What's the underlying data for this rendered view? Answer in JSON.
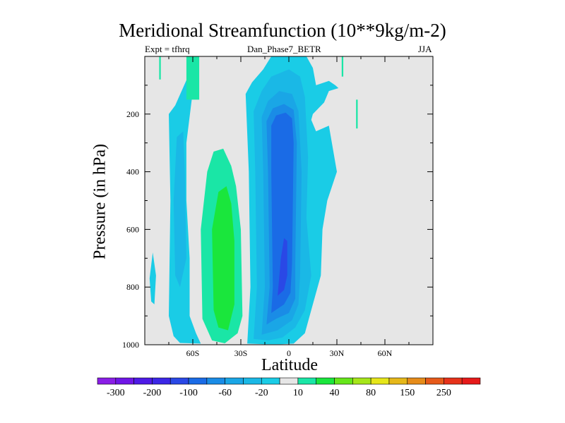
{
  "chart_data": {
    "type": "heatmap",
    "title": "Meridional Streamfunction (10**9kg/m-2)",
    "left_string": "Expt = tfhrq",
    "center_string": "Dan_Phase7_BETR",
    "right_string": "JJA",
    "xlabel": "Latitude",
    "ylabel": "Pressure (in hPa)",
    "xlim": [
      -90,
      90
    ],
    "ylim": [
      1000,
      0
    ],
    "x_ticks": [
      {
        "value": -60,
        "label": "60S"
      },
      {
        "value": -30,
        "label": "30S"
      },
      {
        "value": 0,
        "label": "0"
      },
      {
        "value": 30,
        "label": "30N"
      },
      {
        "value": 60,
        "label": "60N"
      }
    ],
    "y_ticks": [
      {
        "value": 200,
        "label": "200"
      },
      {
        "value": 400,
        "label": "400"
      },
      {
        "value": 600,
        "label": "600"
      },
      {
        "value": 800,
        "label": "800"
      },
      {
        "value": 1000,
        "label": "1000"
      }
    ],
    "colorbar": {
      "levels": [
        "-300",
        "-200",
        "-100",
        "-60",
        "-20",
        "10",
        "40",
        "80",
        "150",
        "250"
      ],
      "colors": [
        "#8a1ee6",
        "#6f16e6",
        "#4e1ae6",
        "#3b26e6",
        "#2a48e6",
        "#1a6be6",
        "#1a8ce6",
        "#1aa6e6",
        "#1ab8e6",
        "#1acce6",
        "#e6e6e6",
        "#1ae6a6",
        "#1ae63c",
        "#66e61a",
        "#a6e61a",
        "#e6e61a",
        "#e6b81a",
        "#e68c1a",
        "#e65a1a",
        "#e6321a",
        "#e61a1a"
      ]
    },
    "regions": [
      {
        "level": -1,
        "shape": "poly",
        "pts": [
          [
            -55,
            996
          ],
          [
            -58,
            960
          ],
          [
            -62,
            900
          ],
          [
            -62,
            700
          ],
          [
            -64,
            500
          ],
          [
            -64,
            300
          ],
          [
            -60,
            120
          ],
          [
            -63,
            70
          ],
          [
            -71,
            170
          ],
          [
            -75,
            200
          ],
          [
            -74,
            500
          ],
          [
            -75,
            900
          ],
          [
            -72,
            970
          ],
          [
            -68,
            994
          ]
        ]
      },
      {
        "level": -2,
        "shape": "poly",
        "pts": [
          [
            -68,
            800
          ],
          [
            -64,
            700
          ],
          [
            -65,
            400
          ],
          [
            -66,
            260
          ],
          [
            -70,
            280
          ],
          [
            -72,
            500
          ],
          [
            -71,
            760
          ]
        ]
      },
      {
        "level": -1,
        "shape": "poly",
        "pts": [
          [
            -87,
            770
          ],
          [
            -85,
            680
          ],
          [
            -83,
            760
          ],
          [
            -84,
            860
          ],
          [
            -86,
            850
          ]
        ]
      },
      {
        "level": 1,
        "shape": "poly",
        "pts": [
          [
            -54,
            910
          ],
          [
            -55,
            600
          ],
          [
            -51,
            400
          ],
          [
            -47,
            330
          ],
          [
            -41,
            320
          ],
          [
            -36,
            380
          ],
          [
            -33,
            450
          ],
          [
            -30,
            600
          ],
          [
            -29,
            900
          ],
          [
            -32,
            960
          ],
          [
            -40,
            995
          ],
          [
            -48,
            985
          ]
        ]
      },
      {
        "level": 2,
        "shape": "poly",
        "pts": [
          [
            -47,
            880
          ],
          [
            -48,
            600
          ],
          [
            -44,
            470
          ],
          [
            -39,
            450
          ],
          [
            -36,
            510
          ],
          [
            -34,
            640
          ],
          [
            -34,
            860
          ],
          [
            -38,
            950
          ],
          [
            -44,
            940
          ]
        ]
      },
      {
        "level": 1,
        "shape": "rect",
        "x0": -64,
        "x1": -56,
        "p0": 0,
        "p1": 150
      },
      {
        "level": 1,
        "shape": "rect",
        "x0": -81,
        "x1": -80,
        "p0": 0,
        "p1": 80
      },
      {
        "level": 1,
        "shape": "rect",
        "x0": 33,
        "x1": 34,
        "p0": 0,
        "p1": 70
      },
      {
        "level": 1,
        "shape": "rect",
        "x0": 42,
        "x1": 43,
        "p0": 150,
        "p1": 250
      },
      {
        "level": -1,
        "shape": "poly",
        "pts": [
          [
            -26,
            996
          ],
          [
            -24,
            800
          ],
          [
            -25,
            400
          ],
          [
            -27,
            130
          ],
          [
            -23,
            90
          ],
          [
            -16,
            45
          ],
          [
            -11,
            0
          ],
          [
            11,
            0
          ],
          [
            15,
            40
          ],
          [
            17,
            100
          ],
          [
            25,
            85
          ],
          [
            29,
            100
          ],
          [
            31,
            110
          ],
          [
            25,
            120
          ],
          [
            22,
            160
          ],
          [
            15,
            200
          ],
          [
            14,
            220
          ],
          [
            17,
            260
          ],
          [
            25,
            240
          ],
          [
            30,
            400
          ],
          [
            24,
            500
          ],
          [
            21,
            600
          ],
          [
            20,
            760
          ],
          [
            14,
            880
          ],
          [
            10,
            960
          ],
          [
            3,
            996
          ],
          [
            -5,
            998
          ],
          [
            -15,
            998
          ]
        ]
      },
      {
        "level": -2,
        "shape": "poly",
        "pts": [
          [
            -22,
            980
          ],
          [
            -20,
            800
          ],
          [
            -21,
            400
          ],
          [
            -22,
            190
          ],
          [
            -17,
            120
          ],
          [
            -11,
            70
          ],
          [
            0,
            45
          ],
          [
            7,
            70
          ],
          [
            10,
            140
          ],
          [
            12,
            350
          ],
          [
            11,
            560
          ],
          [
            14,
            760
          ],
          [
            10,
            880
          ],
          [
            4,
            940
          ],
          [
            -4,
            975
          ],
          [
            -13,
            985
          ]
        ]
      },
      {
        "level": -3,
        "shape": "poly",
        "pts": [
          [
            -17,
            965
          ],
          [
            -15,
            800
          ],
          [
            -16,
            400
          ],
          [
            -17,
            210
          ],
          [
            -13,
            155
          ],
          [
            -6,
            120
          ],
          [
            2,
            130
          ],
          [
            6,
            190
          ],
          [
            8,
            400
          ],
          [
            7,
            760
          ],
          [
            6,
            860
          ],
          [
            2,
            915
          ],
          [
            -7,
            950
          ]
        ]
      },
      {
        "level": -4,
        "shape": "poly",
        "pts": [
          [
            -14,
            930
          ],
          [
            -12,
            800
          ],
          [
            -13,
            400
          ],
          [
            -14,
            225
          ],
          [
            -10,
            180
          ],
          [
            -3,
            165
          ],
          [
            3,
            185
          ],
          [
            5,
            300
          ],
          [
            4,
            720
          ],
          [
            4,
            840
          ],
          [
            0,
            890
          ],
          [
            -8,
            910
          ]
        ]
      },
      {
        "level": -5,
        "shape": "poly",
        "pts": [
          [
            -11,
            890
          ],
          [
            -10,
            800
          ],
          [
            -11,
            400
          ],
          [
            -11,
            240
          ],
          [
            -8,
            205
          ],
          [
            -2,
            195
          ],
          [
            2,
            215
          ],
          [
            3,
            300
          ],
          [
            2,
            720
          ],
          [
            1,
            820
          ],
          [
            -3,
            860
          ]
        ]
      },
      {
        "level": -6,
        "shape": "poly",
        "pts": [
          [
            -7,
            830
          ],
          [
            -5,
            700
          ],
          [
            -3,
            630
          ],
          [
            -1,
            640
          ],
          [
            -1,
            760
          ],
          [
            -3,
            810
          ]
        ]
      }
    ]
  }
}
